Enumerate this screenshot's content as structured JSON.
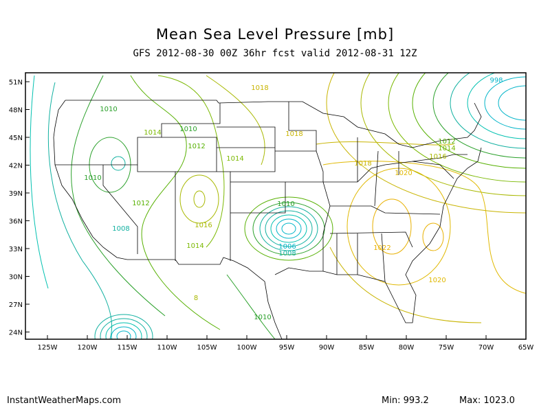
{
  "title": "Mean Sea Level Pressure [mb]",
  "subtitle": "GFS 2012-08-30 00Z 36hr fcst valid 2012-08-31 12Z",
  "credit": "InstantWeatherMaps.com",
  "min_label": "Min:",
  "min_value": "993.2",
  "max_label": "Max:",
  "max_value": "1023.0",
  "lat_ticks": [
    "51N",
    "48N",
    "45N",
    "42N",
    "39N",
    "36N",
    "33N",
    "30N",
    "27N",
    "24N"
  ],
  "lon_ticks": [
    "125W",
    "120W",
    "115W",
    "110W",
    "105W",
    "100W",
    "95W",
    "90W",
    "85W",
    "80W",
    "75W",
    "70W",
    "65W"
  ],
  "contour_labels": [
    {
      "text": "1018",
      "color": "#c8b400"
    },
    {
      "text": "998",
      "color": "#00b4c8"
    },
    {
      "text": "1010",
      "color": "#2aa02a"
    },
    {
      "text": "1014",
      "color": "#7ab800"
    },
    {
      "text": "1010",
      "color": "#2aa02a"
    },
    {
      "text": "1012",
      "color": "#56b000"
    },
    {
      "text": "1018",
      "color": "#c8b400"
    },
    {
      "text": "1012",
      "color": "#56b000"
    },
    {
      "text": "1014",
      "color": "#7ab800"
    },
    {
      "text": "1016",
      "color": "#a8b800"
    },
    {
      "text": "1014",
      "color": "#7ab800"
    },
    {
      "text": "1018",
      "color": "#c8b400"
    },
    {
      "text": "1020",
      "color": "#e0b800"
    },
    {
      "text": "1010",
      "color": "#2aa02a"
    },
    {
      "text": "1012",
      "color": "#56b000"
    },
    {
      "text": "1010",
      "color": "#2aa02a"
    },
    {
      "text": "1016",
      "color": "#a8b800"
    },
    {
      "text": "1008",
      "color": "#10b0a0"
    },
    {
      "text": "1014",
      "color": "#7ab800"
    },
    {
      "text": "1006",
      "color": "#00b4c8"
    },
    {
      "text": "1008",
      "color": "#10b0a0"
    },
    {
      "text": "1022",
      "color": "#e8b000"
    },
    {
      "text": "1020",
      "color": "#e0b800"
    },
    {
      "text": "1010",
      "color": "#2aa02a"
    },
    {
      "text": "8",
      "color": "#a8b800"
    }
  ]
}
